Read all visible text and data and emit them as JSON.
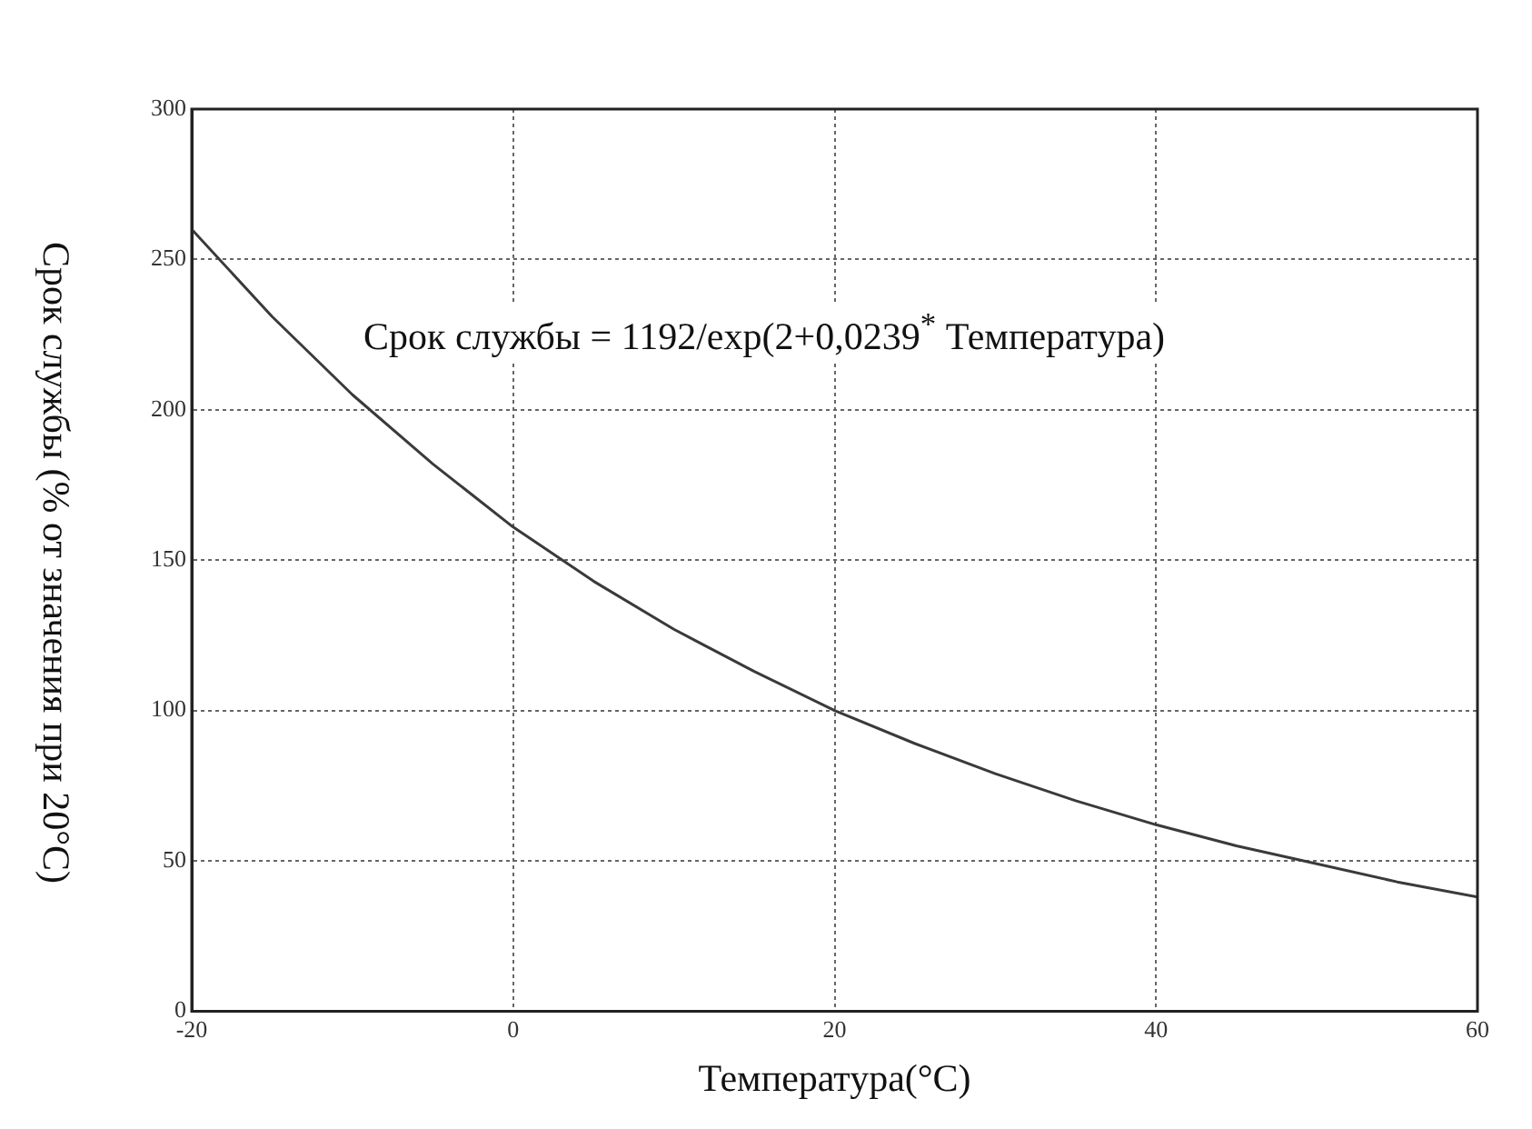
{
  "chart_data": {
    "type": "line",
    "xlabel": "Температура(°C)",
    "ylabel": "Срок службы (% от значения при 20°C)",
    "annotations": [
      "Срок службы = 1192/exp(2+0,0239$^{*}$ Температура)"
    ],
    "x": [
      -20,
      -15,
      -10,
      -5,
      0,
      5,
      10,
      15,
      20,
      25,
      30,
      35,
      40,
      45,
      50,
      55,
      60
    ],
    "series": [
      {
        "color": "#3a3a3a",
        "values": [
          260,
          231,
          205,
          182,
          161,
          143,
          127,
          113,
          100,
          89,
          79,
          70,
          62,
          55,
          49,
          43,
          38
        ]
      }
    ],
    "xlim": [
      -20,
      60
    ],
    "xticks": [
      -20,
      0,
      20,
      40,
      60
    ],
    "ylim": [
      0,
      300
    ],
    "yticks": [
      0,
      50,
      100,
      150,
      200,
      250,
      300
    ],
    "grid": true,
    "marker": "none",
    "line_style": "solid",
    "legend": false
  }
}
